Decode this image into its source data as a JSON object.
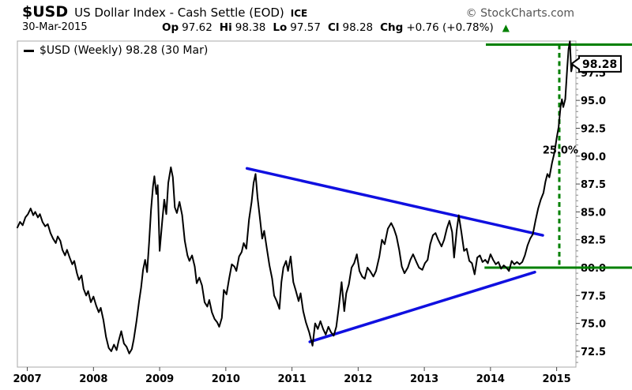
{
  "header": {
    "symbol": "$USD",
    "title": "US Dollar Index - Cash Settle (EOD)",
    "exchange": "ICE",
    "copyright": "© StockCharts.com",
    "date": "30-Mar-2015",
    "quote": [
      {
        "label": "Op",
        "value": "97.62"
      },
      {
        "label": "Hi",
        "value": "98.38"
      },
      {
        "label": "Lo",
        "value": "97.57"
      },
      {
        "label": "Cl",
        "value": "98.28"
      },
      {
        "label": "Chg",
        "value": "+0.76 (+0.78%)"
      }
    ],
    "change_arrow": "▲",
    "change_direction": "up"
  },
  "legend": {
    "label": "$USD (Weekly) 98.28 (30 Mar)"
  },
  "price_tag": {
    "text": "98.28",
    "value": 98.28
  },
  "colors": {
    "price_line": "#000000",
    "trendline": "#1010e0",
    "signal_green": "#008000",
    "plot_border": "#a8a8a8",
    "copyright_gray": "#555555"
  },
  "chart_data": {
    "type": "line",
    "title": "$USD US Dollar Index - Cash Settle (EOD) ICE - Weekly",
    "period": "Weekly",
    "last_price": 98.28,
    "last_date": "30 Mar",
    "grid": false,
    "legend_position": "top-left",
    "x_domain": [
      2006.85,
      2015.291
    ],
    "y_domain": [
      71.08,
      100.32
    ],
    "x_ticks": [
      2007,
      2008,
      2009,
      2010,
      2011,
      2012,
      2013,
      2014,
      2015
    ],
    "y_ticks": [
      {
        "value": 72.5,
        "label": "72.5"
      },
      {
        "value": 75.0,
        "label": "75.0"
      },
      {
        "value": 77.5,
        "label": "77.5"
      },
      {
        "value": 80.0,
        "label": "80.0"
      },
      {
        "value": 82.5,
        "label": "82.5"
      },
      {
        "value": 85.0,
        "label": "85.0"
      },
      {
        "value": 87.5,
        "label": "87.5"
      },
      {
        "value": 90.0,
        "label": "90.0"
      },
      {
        "value": 92.5,
        "label": "92.5"
      },
      {
        "value": 95.0,
        "label": "95.0"
      },
      {
        "value": 97.5,
        "label": "97.5"
      }
    ],
    "y_minor_tick_step": 0.5,
    "series": [
      {
        "name": "$USD (Weekly)",
        "color": "#000000",
        "points": [
          [
            2006.85,
            83.6
          ],
          [
            2006.89,
            84.1
          ],
          [
            2006.93,
            83.8
          ],
          [
            2006.97,
            84.5
          ],
          [
            2007.01,
            84.8
          ],
          [
            2007.05,
            85.3
          ],
          [
            2007.09,
            84.7
          ],
          [
            2007.12,
            85.0
          ],
          [
            2007.16,
            84.5
          ],
          [
            2007.19,
            84.8
          ],
          [
            2007.23,
            84.1
          ],
          [
            2007.27,
            83.7
          ],
          [
            2007.31,
            83.9
          ],
          [
            2007.35,
            83.1
          ],
          [
            2007.39,
            82.6
          ],
          [
            2007.43,
            82.2
          ],
          [
            2007.46,
            82.8
          ],
          [
            2007.5,
            82.4
          ],
          [
            2007.53,
            81.6
          ],
          [
            2007.57,
            81.1
          ],
          [
            2007.6,
            81.6
          ],
          [
            2007.64,
            80.9
          ],
          [
            2007.68,
            80.3
          ],
          [
            2007.71,
            80.6
          ],
          [
            2007.75,
            79.5
          ],
          [
            2007.78,
            78.9
          ],
          [
            2007.82,
            79.3
          ],
          [
            2007.85,
            78.1
          ],
          [
            2007.89,
            77.5
          ],
          [
            2007.92,
            77.9
          ],
          [
            2007.96,
            76.9
          ],
          [
            2008.0,
            77.4
          ],
          [
            2008.04,
            76.6
          ],
          [
            2008.08,
            76.0
          ],
          [
            2008.11,
            76.4
          ],
          [
            2008.15,
            75.3
          ],
          [
            2008.19,
            73.8
          ],
          [
            2008.23,
            72.8
          ],
          [
            2008.27,
            72.5
          ],
          [
            2008.31,
            73.1
          ],
          [
            2008.35,
            72.6
          ],
          [
            2008.38,
            73.4
          ],
          [
            2008.42,
            74.3
          ],
          [
            2008.46,
            73.2
          ],
          [
            2008.5,
            72.9
          ],
          [
            2008.54,
            72.3
          ],
          [
            2008.58,
            72.7
          ],
          [
            2008.61,
            73.6
          ],
          [
            2008.65,
            75.2
          ],
          [
            2008.69,
            77.0
          ],
          [
            2008.72,
            78.2
          ],
          [
            2008.75,
            79.8
          ],
          [
            2008.78,
            80.7
          ],
          [
            2008.81,
            79.6
          ],
          [
            2008.84,
            82.2
          ],
          [
            2008.87,
            85.2
          ],
          [
            2008.9,
            87.3
          ],
          [
            2008.92,
            88.2
          ],
          [
            2008.95,
            86.6
          ],
          [
            2008.97,
            87.4
          ],
          [
            2009.0,
            81.5
          ],
          [
            2009.04,
            84.2
          ],
          [
            2009.07,
            86.1
          ],
          [
            2009.1,
            84.8
          ],
          [
            2009.13,
            87.6
          ],
          [
            2009.17,
            89.0
          ],
          [
            2009.2,
            88.1
          ],
          [
            2009.23,
            85.4
          ],
          [
            2009.26,
            84.9
          ],
          [
            2009.3,
            85.9
          ],
          [
            2009.34,
            84.7
          ],
          [
            2009.38,
            82.4
          ],
          [
            2009.42,
            81.1
          ],
          [
            2009.45,
            80.6
          ],
          [
            2009.49,
            81.1
          ],
          [
            2009.53,
            80.1
          ],
          [
            2009.56,
            78.6
          ],
          [
            2009.6,
            79.1
          ],
          [
            2009.64,
            78.4
          ],
          [
            2009.68,
            76.9
          ],
          [
            2009.72,
            76.5
          ],
          [
            2009.75,
            77.1
          ],
          [
            2009.79,
            76.0
          ],
          [
            2009.83,
            75.4
          ],
          [
            2009.87,
            75.1
          ],
          [
            2009.9,
            74.7
          ],
          [
            2009.94,
            75.5
          ],
          [
            2009.97,
            78.0
          ],
          [
            2010.01,
            77.6
          ],
          [
            2010.05,
            79.0
          ],
          [
            2010.09,
            80.3
          ],
          [
            2010.13,
            80.1
          ],
          [
            2010.16,
            79.7
          ],
          [
            2010.2,
            81.0
          ],
          [
            2010.24,
            81.4
          ],
          [
            2010.27,
            82.2
          ],
          [
            2010.31,
            81.7
          ],
          [
            2010.35,
            84.3
          ],
          [
            2010.39,
            85.9
          ],
          [
            2010.42,
            87.6
          ],
          [
            2010.45,
            88.4
          ],
          [
            2010.48,
            86.3
          ],
          [
            2010.51,
            84.7
          ],
          [
            2010.55,
            82.6
          ],
          [
            2010.58,
            83.3
          ],
          [
            2010.62,
            81.7
          ],
          [
            2010.66,
            80.2
          ],
          [
            2010.7,
            79.0
          ],
          [
            2010.73,
            77.5
          ],
          [
            2010.77,
            77.0
          ],
          [
            2010.81,
            76.3
          ],
          [
            2010.84,
            78.7
          ],
          [
            2010.87,
            80.0
          ],
          [
            2010.91,
            80.6
          ],
          [
            2010.94,
            79.7
          ],
          [
            2010.98,
            81.0
          ],
          [
            2011.02,
            78.7
          ],
          [
            2011.06,
            77.9
          ],
          [
            2011.1,
            77.0
          ],
          [
            2011.13,
            77.7
          ],
          [
            2011.17,
            76.1
          ],
          [
            2011.21,
            75.1
          ],
          [
            2011.26,
            74.2
          ],
          [
            2011.31,
            73.0
          ],
          [
            2011.35,
            75.0
          ],
          [
            2011.39,
            74.5
          ],
          [
            2011.43,
            75.2
          ],
          [
            2011.47,
            74.5
          ],
          [
            2011.51,
            74.0
          ],
          [
            2011.55,
            74.7
          ],
          [
            2011.59,
            74.2
          ],
          [
            2011.63,
            73.9
          ],
          [
            2011.67,
            74.7
          ],
          [
            2011.71,
            76.6
          ],
          [
            2011.75,
            78.7
          ],
          [
            2011.79,
            76.1
          ],
          [
            2011.82,
            77.7
          ],
          [
            2011.86,
            78.5
          ],
          [
            2011.9,
            80.0
          ],
          [
            2011.94,
            80.4
          ],
          [
            2011.98,
            81.2
          ],
          [
            2012.02,
            79.7
          ],
          [
            2012.06,
            79.2
          ],
          [
            2012.1,
            79.0
          ],
          [
            2012.14,
            80.0
          ],
          [
            2012.18,
            79.7
          ],
          [
            2012.23,
            79.2
          ],
          [
            2012.27,
            79.7
          ],
          [
            2012.32,
            81.0
          ],
          [
            2012.36,
            82.5
          ],
          [
            2012.4,
            82.1
          ],
          [
            2012.45,
            83.5
          ],
          [
            2012.5,
            84.0
          ],
          [
            2012.54,
            83.5
          ],
          [
            2012.58,
            82.8
          ],
          [
            2012.62,
            81.6
          ],
          [
            2012.66,
            80.1
          ],
          [
            2012.7,
            79.5
          ],
          [
            2012.75,
            80.0
          ],
          [
            2012.79,
            80.7
          ],
          [
            2012.83,
            81.2
          ],
          [
            2012.88,
            80.5
          ],
          [
            2012.92,
            80.0
          ],
          [
            2012.97,
            79.8
          ],
          [
            2013.01,
            80.4
          ],
          [
            2013.05,
            80.7
          ],
          [
            2013.09,
            82.1
          ],
          [
            2013.13,
            82.9
          ],
          [
            2013.17,
            83.1
          ],
          [
            2013.21,
            82.5
          ],
          [
            2013.26,
            81.9
          ],
          [
            2013.3,
            82.5
          ],
          [
            2013.34,
            83.5
          ],
          [
            2013.38,
            84.2
          ],
          [
            2013.42,
            83.2
          ],
          [
            2013.45,
            80.9
          ],
          [
            2013.49,
            83.4
          ],
          [
            2013.52,
            84.7
          ],
          [
            2013.56,
            83.2
          ],
          [
            2013.6,
            81.5
          ],
          [
            2013.64,
            81.7
          ],
          [
            2013.68,
            80.6
          ],
          [
            2013.72,
            80.4
          ],
          [
            2013.76,
            79.4
          ],
          [
            2013.8,
            80.9
          ],
          [
            2013.84,
            81.1
          ],
          [
            2013.88,
            80.5
          ],
          [
            2013.92,
            80.7
          ],
          [
            2013.96,
            80.4
          ],
          [
            2014.0,
            81.2
          ],
          [
            2014.04,
            80.7
          ],
          [
            2014.08,
            80.3
          ],
          [
            2014.12,
            80.5
          ],
          [
            2014.16,
            79.9
          ],
          [
            2014.2,
            80.2
          ],
          [
            2014.24,
            80.0
          ],
          [
            2014.28,
            79.7
          ],
          [
            2014.32,
            80.6
          ],
          [
            2014.36,
            80.3
          ],
          [
            2014.4,
            80.5
          ],
          [
            2014.44,
            80.3
          ],
          [
            2014.48,
            80.5
          ],
          [
            2014.52,
            81.1
          ],
          [
            2014.56,
            82.0
          ],
          [
            2014.6,
            82.6
          ],
          [
            2014.64,
            83.0
          ],
          [
            2014.68,
            84.2
          ],
          [
            2014.72,
            85.3
          ],
          [
            2014.76,
            86.1
          ],
          [
            2014.8,
            86.7
          ],
          [
            2014.83,
            87.7
          ],
          [
            2014.86,
            88.4
          ],
          [
            2014.89,
            88.1
          ],
          [
            2014.93,
            89.4
          ],
          [
            2014.97,
            90.4
          ],
          [
            2015.0,
            91.6
          ],
          [
            2015.03,
            92.6
          ],
          [
            2015.06,
            94.5
          ],
          [
            2015.08,
            95.1
          ],
          [
            2015.1,
            94.4
          ],
          [
            2015.13,
            95.1
          ],
          [
            2015.16,
            97.9
          ],
          [
            2015.18,
            99.6
          ],
          [
            2015.2,
            100.3
          ],
          [
            2015.22,
            97.6
          ],
          [
            2015.235,
            98.0
          ],
          [
            2015.243,
            98.28
          ]
        ]
      }
    ],
    "trendlines": [
      {
        "name": "descending-resistance",
        "color": "#1010e0",
        "from": [
          2010.32,
          88.9
        ],
        "to": [
          2014.79,
          82.9
        ]
      },
      {
        "name": "ascending-support",
        "color": "#1010e0",
        "from": [
          2011.27,
          73.35
        ],
        "to": [
          2014.67,
          79.6
        ]
      }
    ],
    "levels": [
      {
        "name": "resistance-100",
        "value": 100.0,
        "from_x": 2013.93,
        "color": "#008000"
      },
      {
        "name": "support-80",
        "value": 80.0,
        "from_x": 2013.91,
        "color": "#008000"
      }
    ],
    "vline": {
      "x": 2015.04,
      "from_value": 80.0,
      "to_value": 100.0,
      "style": "dashed",
      "color": "#008000"
    },
    "annotations": [
      {
        "text": "25.0%",
        "x": 2015.04,
        "value": 90.5,
        "align": "end"
      }
    ]
  }
}
